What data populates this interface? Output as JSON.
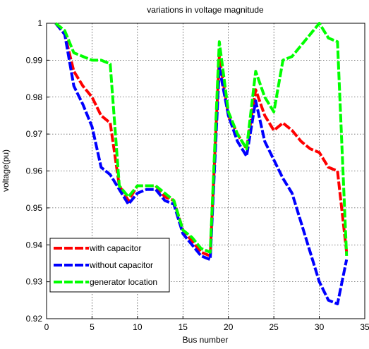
{
  "chart_data": {
    "type": "line",
    "title": "variations in voltage magnitude",
    "xlabel": "Bus number",
    "ylabel": "voltage(pu)",
    "xlim": [
      0,
      35
    ],
    "ylim": [
      0.92,
      1.0
    ],
    "xticks": [
      0,
      5,
      10,
      15,
      20,
      25,
      30,
      35
    ],
    "yticks": [
      0.92,
      0.93,
      0.94,
      0.95,
      0.96,
      0.97,
      0.98,
      0.99,
      1.0
    ],
    "ytick_labels": [
      "0.92",
      "0.93",
      "0.94",
      "0.95",
      "0.96",
      "0.97",
      "0.98",
      "0.99",
      "1"
    ],
    "grid": true,
    "legend_position": "bottom-left",
    "x": [
      1,
      2,
      3,
      4,
      5,
      6,
      7,
      8,
      9,
      10,
      11,
      12,
      13,
      14,
      15,
      16,
      17,
      18,
      19,
      20,
      21,
      22,
      23,
      24,
      25,
      26,
      27,
      28,
      29,
      30,
      31,
      32,
      33
    ],
    "series": [
      {
        "name": "with capacitor",
        "color": "#ff0000",
        "values": [
          1.0,
          0.997,
          0.987,
          0.983,
          0.98,
          0.975,
          0.973,
          0.956,
          0.952,
          0.956,
          0.956,
          0.956,
          0.953,
          0.952,
          0.944,
          0.941,
          0.938,
          0.937,
          0.991,
          0.975,
          0.97,
          0.966,
          0.982,
          0.975,
          0.971,
          0.973,
          0.971,
          0.968,
          0.966,
          0.965,
          0.961,
          0.96,
          0.938
        ]
      },
      {
        "name": "without capacitor",
        "color": "#0000ff",
        "values": [
          1.0,
          0.997,
          0.983,
          0.978,
          0.972,
          0.961,
          0.959,
          0.955,
          0.951,
          0.954,
          0.955,
          0.955,
          0.952,
          0.951,
          0.943,
          0.94,
          0.937,
          0.936,
          0.988,
          0.975,
          0.968,
          0.964,
          0.979,
          0.968,
          0.963,
          0.958,
          0.954,
          0.946,
          0.938,
          0.93,
          0.925,
          0.924,
          0.936
        ]
      },
      {
        "name": "generator location",
        "color": "#00ff00",
        "values": [
          1.0,
          0.998,
          0.992,
          0.991,
          0.99,
          0.99,
          0.989,
          0.956,
          0.953,
          0.956,
          0.956,
          0.956,
          0.954,
          0.952,
          0.944,
          0.942,
          0.939,
          0.938,
          0.995,
          0.976,
          0.97,
          0.966,
          0.987,
          0.98,
          0.976,
          0.99,
          0.991,
          0.994,
          0.997,
          1.0,
          0.996,
          0.995,
          0.937
        ]
      }
    ]
  }
}
